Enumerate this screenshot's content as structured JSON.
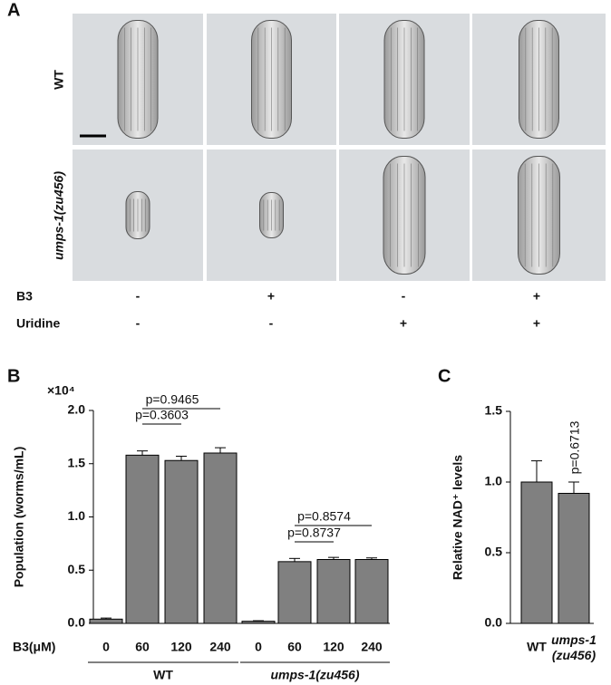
{
  "panel_labels": [
    "A",
    "B",
    "C"
  ],
  "panel_a": {
    "row_labels": [
      "WT",
      "umps-1(zu456)"
    ],
    "conditions": [
      {
        "label": "B3",
        "values": [
          "-",
          "+",
          "-",
          "+"
        ]
      },
      {
        "label": "Uridine",
        "values": [
          "-",
          "-",
          "+",
          "+"
        ]
      }
    ]
  },
  "chart_data": [
    {
      "type": "bar",
      "y_label": "Population (worms/mL)",
      "y_multiplier": "×10⁴",
      "x_label": "B3(μM)",
      "categories": [
        "0",
        "60",
        "120",
        "240",
        "0",
        "60",
        "120",
        "240"
      ],
      "groups": [
        "WT",
        "umps-1(zu456)"
      ],
      "values": [
        0.04,
        1.58,
        1.53,
        1.6,
        0.02,
        0.58,
        0.6,
        0.6
      ],
      "errors": [
        0.01,
        0.04,
        0.04,
        0.05,
        0.005,
        0.03,
        0.02,
        0.015
      ],
      "color": "#808080",
      "ylim": [
        0,
        2
      ],
      "yticks": [
        {
          "value": 0,
          "label": "0.0"
        },
        {
          "value": 0.5,
          "label": "0.5"
        },
        {
          "value": 1,
          "label": "1.0"
        },
        {
          "value": 1.5,
          "label": "1.5"
        },
        {
          "value": 2,
          "label": "2.0"
        }
      ],
      "annotations": [
        "p=0.9465",
        "p=0.3603",
        "p=0.8574",
        "p=0.8737"
      ]
    },
    {
      "type": "bar",
      "y_label": "Relative NAD⁺ levels",
      "categories": [
        "WT",
        "umps-1 (zu456)"
      ],
      "values": [
        1.0,
        0.92
      ],
      "errors": [
        0.15,
        0.08
      ],
      "color": "#808080",
      "ylim": [
        0,
        1.5
      ],
      "yticks": [
        {
          "value": 0,
          "label": "0.0"
        },
        {
          "value": 0.5,
          "label": "0.5"
        },
        {
          "value": 1,
          "label": "1.0"
        },
        {
          "value": 1.5,
          "label": "1.5"
        }
      ],
      "annotations": [
        "p=0.6713"
      ]
    }
  ]
}
